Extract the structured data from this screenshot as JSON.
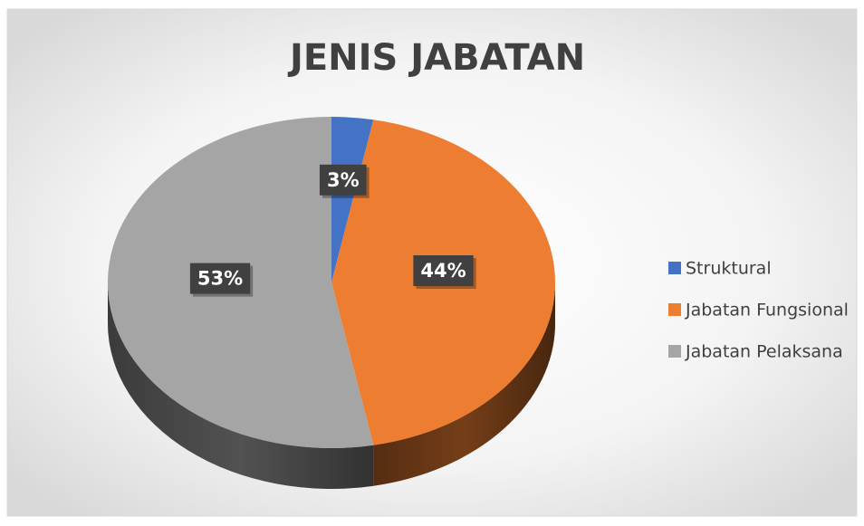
{
  "chart_data": {
    "type": "pie",
    "title": "JENIS JABATAN",
    "categories": [
      "Struktural",
      "Jabatan Fungsional",
      "Jabatan Pelaksana"
    ],
    "values": [
      3,
      44,
      53
    ],
    "value_labels": [
      "3%",
      "44%",
      "53%"
    ],
    "colors": [
      "#4472c4",
      "#ed7d31",
      "#a5a5a5"
    ],
    "legend": "right"
  }
}
